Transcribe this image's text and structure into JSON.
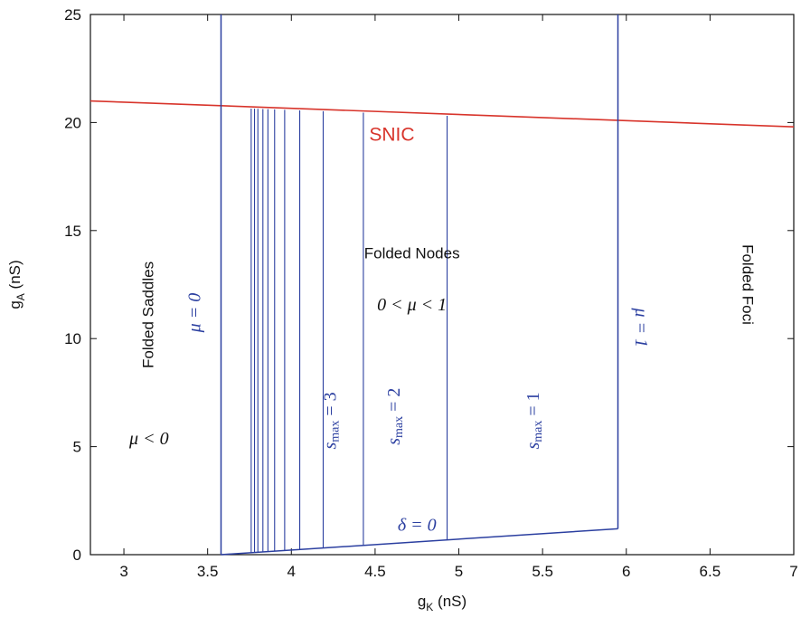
{
  "chart_data": {
    "type": "line",
    "xlabel": "g",
    "xlabel_sub": "K",
    "xlabel_unit": " (nS)",
    "ylabel": "g",
    "ylabel_sub": "A",
    "ylabel_unit": " (nS)",
    "xlim": [
      2.8,
      7
    ],
    "ylim": [
      0,
      25
    ],
    "xticks": [
      3,
      3.5,
      4,
      4.5,
      5,
      5.5,
      6,
      6.5,
      7
    ],
    "xtick_labels": [
      "3",
      "3.5",
      "4",
      "4.5",
      "5",
      "5.5",
      "6",
      "6.5",
      "7"
    ],
    "yticks": [
      0,
      5,
      10,
      15,
      20,
      25
    ],
    "ytick_labels": [
      "0",
      "5",
      "10",
      "15",
      "20",
      "25"
    ],
    "grid": false,
    "colors": {
      "snic": "#d8342b",
      "boundaries": "#2b3fa0",
      "axes": "#111111"
    },
    "series": [
      {
        "name": "SNIC",
        "color": "#d8342b",
        "x": [
          2.8,
          7.0
        ],
        "y": [
          21.0,
          19.8
        ]
      },
      {
        "name": "μ = 0",
        "color": "#2b3fa0",
        "x": [
          3.58,
          3.58
        ],
        "y": [
          0,
          25
        ]
      },
      {
        "name": "μ = 1",
        "color": "#2b3fa0",
        "x": [
          5.95,
          5.95
        ],
        "y": [
          1.2,
          25
        ]
      },
      {
        "name": "δ = 0",
        "color": "#2b3fa0",
        "x": [
          3.58,
          5.95
        ],
        "y": [
          0,
          1.2
        ]
      }
    ],
    "s_max_lines": {
      "color": "#2b3fa0",
      "x": [
        3.76,
        3.78,
        3.8,
        3.83,
        3.86,
        3.9,
        3.96,
        4.05,
        4.19,
        4.43,
        4.93
      ],
      "bottom_y_from_delta_line": true,
      "top_y_from_snic_line": true
    },
    "annotations": [
      {
        "id": "folded-saddles",
        "text": "Folded Saddles",
        "x": 3.15,
        "y": 11.1,
        "rotate": -90,
        "style": "region"
      },
      {
        "id": "mu-lt-0",
        "text": "μ < 0",
        "x": 3.15,
        "y": 5.3,
        "rotate": 0,
        "style": "math-black"
      },
      {
        "id": "mu-eq-0",
        "text": "μ = 0",
        "x": 3.43,
        "y": 11.2,
        "rotate": -90,
        "style": "math-blue"
      },
      {
        "id": "folded-nodes",
        "text": "Folded Nodes",
        "x": 4.72,
        "y": 13.9,
        "rotate": 0,
        "style": "region"
      },
      {
        "id": "mu-between",
        "text": "0 < μ < 1",
        "x": 4.72,
        "y": 11.5,
        "rotate": 0,
        "style": "math-black"
      },
      {
        "id": "smax-3",
        "text": "smax = 3",
        "x": 4.24,
        "y": 6.2,
        "rotate": -90,
        "style": "math-blue"
      },
      {
        "id": "smax-2",
        "text": "smax = 2",
        "x": 4.62,
        "y": 6.4,
        "rotate": -90,
        "style": "math-blue"
      },
      {
        "id": "smax-1",
        "text": "smax = 1",
        "x": 5.45,
        "y": 6.2,
        "rotate": -90,
        "style": "math-blue"
      },
      {
        "id": "delta-eq-0",
        "text": "δ = 0",
        "x": 4.75,
        "y": 1.3,
        "rotate": 0,
        "style": "math-blue"
      },
      {
        "id": "mu-eq-1",
        "text": "μ = 1",
        "x": 6.08,
        "y": 10.5,
        "rotate": 90,
        "style": "math-blue"
      },
      {
        "id": "folded-foci",
        "text": "Folded Foci",
        "x": 6.72,
        "y": 12.5,
        "rotate": 90,
        "style": "region"
      },
      {
        "id": "snic",
        "text": "SNIC",
        "x": 4.6,
        "y": 19.4,
        "rotate": 0,
        "style": "snic"
      }
    ]
  }
}
